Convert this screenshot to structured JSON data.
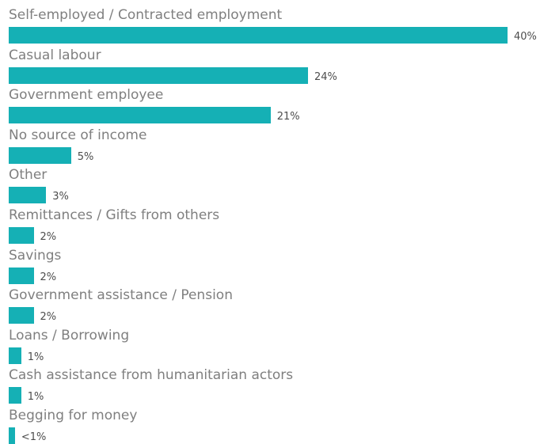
{
  "chart_data": {
    "type": "bar",
    "orientation": "horizontal",
    "bar_color": "#15b0b5",
    "categories": [
      "Self-employed / Contracted employment",
      "Casual labour",
      "Government employee",
      "No source of income",
      "Other",
      "Remittances / Gifts from others",
      "Savings",
      "Government assistance / Pension",
      "Loans / Borrowing",
      "Cash assistance from humanitarian actors",
      "Begging for money"
    ],
    "values": [
      40,
      24,
      21,
      5,
      3,
      2,
      2,
      2,
      1,
      1,
      0.5
    ],
    "value_labels": [
      "40%",
      "24%",
      "21%",
      "5%",
      "3%",
      "2%",
      "2%",
      "2%",
      "1%",
      "1%",
      "<1%"
    ],
    "xlim": [
      0,
      40
    ],
    "grid": false,
    "legend": "none"
  }
}
